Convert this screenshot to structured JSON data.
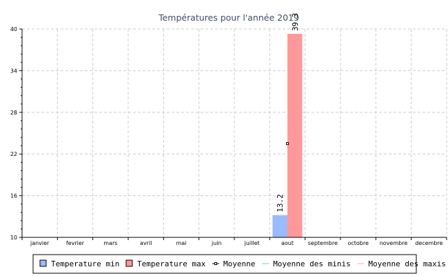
{
  "chart_data": {
    "type": "bar",
    "title": "Températures pour l'année 2019",
    "categories": [
      "janvier",
      "fevrier",
      "mars",
      "avril",
      "mai",
      "juin",
      "juillet",
      "aout",
      "septembre",
      "octobre",
      "novembre",
      "decembre"
    ],
    "series": [
      {
        "name": "Temperature min",
        "values": [
          null,
          null,
          null,
          null,
          null,
          null,
          null,
          13.2,
          null,
          null,
          null,
          null
        ],
        "color": "#99bbff"
      },
      {
        "name": "Temperature max",
        "values": [
          null,
          null,
          null,
          null,
          null,
          null,
          null,
          39.3,
          null,
          null,
          null,
          null
        ],
        "color": "#ff9999"
      }
    ],
    "lines": [
      {
        "name": "Moyenne",
        "values": [
          null,
          null,
          null,
          null,
          null,
          null,
          null,
          23.5,
          null,
          null,
          null,
          null
        ],
        "color": "#000000",
        "marker": "square"
      },
      {
        "name": "Moyenne des minis",
        "values": [],
        "color": "#77cccc"
      },
      {
        "name": "Moyenne des maxis",
        "values": [],
        "color": "#ffaaaa"
      }
    ],
    "ylim": [
      10,
      40
    ],
    "yticks": [
      10,
      16,
      22,
      28,
      34,
      40
    ],
    "data_labels": [
      "13.2",
      "39.3"
    ],
    "grid": true,
    "legend_position": "bottom"
  }
}
